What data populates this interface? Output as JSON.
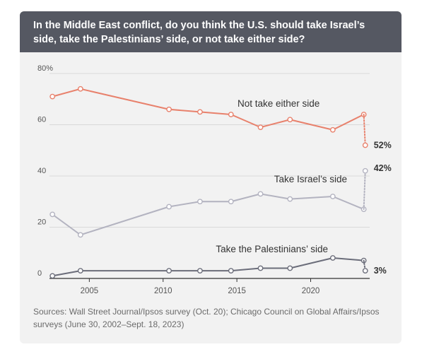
{
  "title": "In the Middle East conflict, do you think the U.S. should take Israel’s side, take the Palestinians’ side, or not take either side?",
  "source": "Sources: Wall Street Journal/Ipsos survey (Oct. 20); Chicago Council on Global Affairs/Ipsos surveys (June 30, 2002–Sept. 18, 2023)",
  "chart_data": {
    "type": "line",
    "title": "In the Middle East conflict, do you think the U.S. should take Israel’s side, take the Palestinians’ side, or not take either side?",
    "xlabel": "",
    "ylabel": "",
    "xlim": [
      2002.3,
      2024.0
    ],
    "ylim": [
      0,
      80
    ],
    "x_ticks": [
      2005,
      2010,
      2015,
      2020
    ],
    "y_ticks": [
      {
        "value": 0,
        "label": "0"
      },
      {
        "value": 20,
        "label": "20"
      },
      {
        "value": 40,
        "label": "40"
      },
      {
        "value": 60,
        "label": "60"
      },
      {
        "value": 80,
        "label": "80%"
      }
    ],
    "grid": "horizontal",
    "series": [
      {
        "name": "Not take either side",
        "color": "#e8816c",
        "x": [
          2002.5,
          2004.4,
          2010.4,
          2012.5,
          2014.6,
          2016.6,
          2018.6,
          2021.5,
          2023.6
        ],
        "values": [
          71,
          74,
          66,
          65,
          64,
          59,
          62,
          58,
          64
        ],
        "latest": {
          "x": 2023.7,
          "value": 52,
          "label": "52%"
        }
      },
      {
        "name": "Take Israel’s side",
        "color": "#b3b3c0",
        "x": [
          2002.5,
          2004.4,
          2010.4,
          2012.5,
          2014.6,
          2016.6,
          2018.6,
          2021.5,
          2023.6
        ],
        "values": [
          25,
          17,
          28,
          30,
          30,
          33,
          31,
          32,
          27
        ],
        "latest": {
          "x": 2023.7,
          "value": 42,
          "label": "42%"
        }
      },
      {
        "name": "Take the Palestinians’ side",
        "color": "#6b6d7a",
        "x": [
          2002.5,
          2004.4,
          2010.4,
          2012.5,
          2014.6,
          2016.6,
          2018.6,
          2021.5,
          2023.6
        ],
        "values": [
          1,
          3,
          3,
          3,
          3,
          4,
          4,
          8,
          7
        ],
        "latest": {
          "x": 2023.7,
          "value": 3,
          "label": "3%"
        }
      }
    ]
  }
}
